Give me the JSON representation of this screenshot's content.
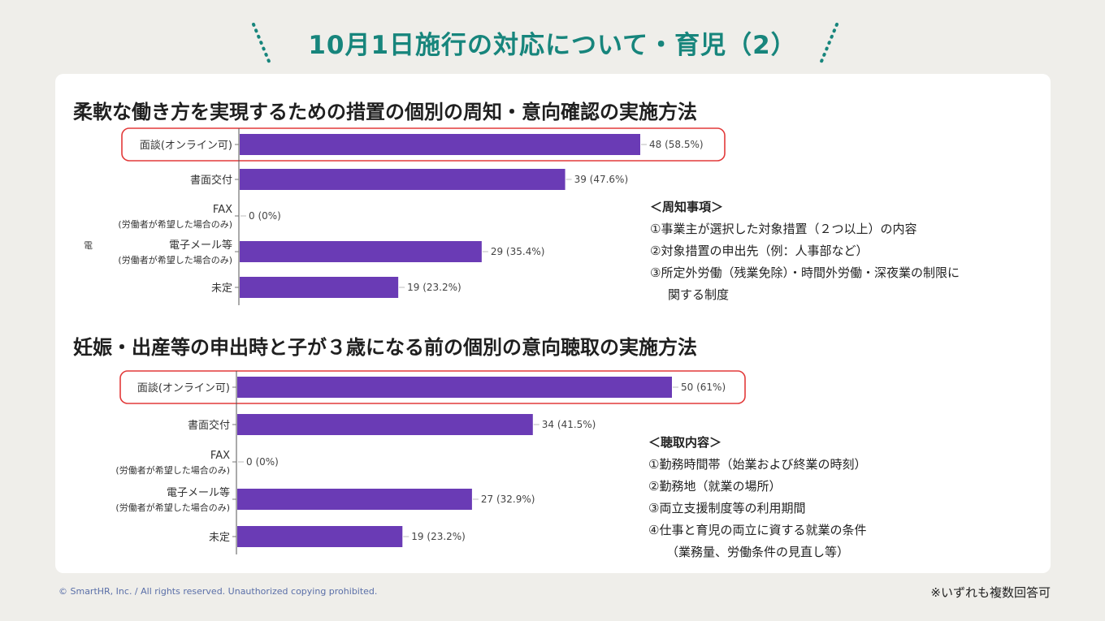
{
  "page_title": "10月1日施行の対応について・育児（2）",
  "side_mark": "電",
  "footer": {
    "copyright": "© SmartHR, Inc. / All rights reserved. Unauthorized copying prohibited.",
    "note": "※いずれも複数回答可"
  },
  "colors": {
    "bar": "#6a3bb5",
    "highlight": "#e23a3a",
    "title": "#17857c"
  },
  "sections": [
    {
      "title": "柔軟な働き方を実現するための措置の個別の周知・意向確認の実施方法",
      "notes_head": "＜周知事項＞",
      "notes": [
        "①事業主が選択した対象措置（２つ以上）の内容",
        "②対象措置の申出先（例：人事部など）",
        "③所定外労働（残業免除）・時間外労働・深夜業の制限に",
        "関する制度"
      ]
    },
    {
      "title": "妊娠・出産等の申出時と子が３歳になる前の個別の意向聴取の実施方法",
      "notes_head": "＜聴取内容＞",
      "notes": [
        "①勤務時間帯（始業および終業の時刻）",
        "②勤務地（就業の場所）",
        "③両立支援制度等の利用期間",
        "④仕事と育児の両立に資する就業の条件",
        "（業務量、労働条件の見直し等）"
      ]
    }
  ],
  "chart_data": [
    {
      "type": "bar",
      "orientation": "horizontal",
      "categories": [
        [
          "面談(オンライン可)"
        ],
        [
          "書面交付"
        ],
        [
          "FAX",
          "(労働者が希望した場合のみ)"
        ],
        [
          "電子メール等",
          "(労働者が希望した場合のみ)"
        ],
        [
          "未定"
        ]
      ],
      "values": [
        48,
        39,
        0,
        29,
        19
      ],
      "data_labels": [
        "48 (58.5%)",
        "39 (47.6%)",
        "0 (0%)",
        "29 (35.4%)",
        "19 (23.2%)"
      ],
      "highlighted_index": 0
    },
    {
      "type": "bar",
      "orientation": "horizontal",
      "categories": [
        [
          "面談(オンライン可)"
        ],
        [
          "書面交付"
        ],
        [
          "FAX",
          "(労働者が希望した場合のみ)"
        ],
        [
          "電子メール等",
          "(労働者が希望した場合のみ)"
        ],
        [
          "未定"
        ]
      ],
      "values": [
        50,
        34,
        0,
        27,
        19
      ],
      "data_labels": [
        "50 (61%)",
        "34 (41.5%)",
        "0 (0%)",
        "27 (32.9%)",
        "19 (23.2%)"
      ],
      "highlighted_index": 0
    }
  ]
}
